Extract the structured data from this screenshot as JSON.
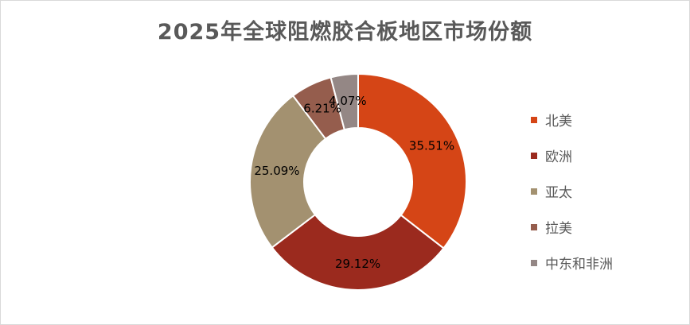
{
  "chart_data": {
    "type": "pie",
    "style": "donut",
    "title": "2025年全球阻燃胶合板地区市场份额",
    "slices": [
      {
        "label": "北美",
        "value": 35.51,
        "display": "35.51%",
        "color": "#D54516"
      },
      {
        "label": "欧洲",
        "value": 29.12,
        "display": "29.12%",
        "color": "#9B2A1E"
      },
      {
        "label": "亚太",
        "value": 25.09,
        "display": "25.09%",
        "color": "#A39170"
      },
      {
        "label": "拉美",
        "value": 6.21,
        "display": "6.21%",
        "color": "#955D4D"
      },
      {
        "label": "中东和非洲",
        "value": 4.07,
        "display": "4.07%",
        "color": "#948785"
      }
    ],
    "legend_position": "right"
  }
}
